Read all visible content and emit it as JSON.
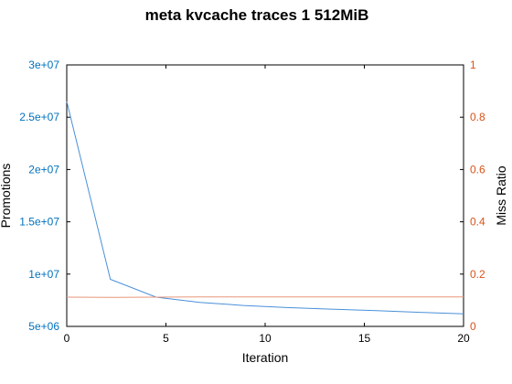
{
  "colors": {
    "left_axis": "#0072bd",
    "right_axis": "#d95319",
    "promotions_line": "#4a90d9",
    "miss_ratio_line": "#e8967a",
    "frame": "#000000"
  },
  "chart_data": {
    "type": "line",
    "title": "meta kvcache traces 1 512MiB",
    "xlabel": "Iteration",
    "ylabel_left": "Promotions",
    "ylabel_right": "Miss Ratio",
    "xlim": [
      0,
      20
    ],
    "ylim_left": [
      5000000,
      30000000
    ],
    "ylim_right": [
      0,
      1
    ],
    "x_ticks": [
      0,
      5,
      10,
      15,
      20
    ],
    "x_tick_labels": [
      "0",
      "5",
      "10",
      "15",
      "20"
    ],
    "left_ticks": [
      5000000,
      10000000,
      15000000,
      20000000,
      25000000,
      30000000
    ],
    "left_tick_labels": [
      "5e+06",
      "1e+07",
      "1.5e+07",
      "2e+07",
      "2.5e+07",
      "3e+07"
    ],
    "right_ticks": [
      0,
      0.2,
      0.4,
      0.6,
      0.8,
      1
    ],
    "right_tick_labels": [
      "0",
      "0.2",
      "0.4",
      "0.6",
      "0.8",
      "1"
    ],
    "grid": false,
    "series": [
      {
        "axis": "left",
        "x": [
          0,
          2.2,
          4.5,
          6.7,
          8.9,
          11.1,
          13.3,
          15.6,
          17.8,
          20
        ],
        "values": [
          26500000,
          9500000,
          7800000,
          7300000,
          7000000,
          6800000,
          6650000,
          6500000,
          6350000,
          6200000
        ]
      },
      {
        "axis": "right",
        "x": [
          0,
          2.2,
          4.5,
          6.7,
          8.9,
          11.1,
          13.3,
          15.6,
          17.8,
          20
        ],
        "values": [
          0.112,
          0.111,
          0.112,
          0.113,
          0.113,
          0.113,
          0.113,
          0.113,
          0.113,
          0.113
        ]
      }
    ]
  }
}
